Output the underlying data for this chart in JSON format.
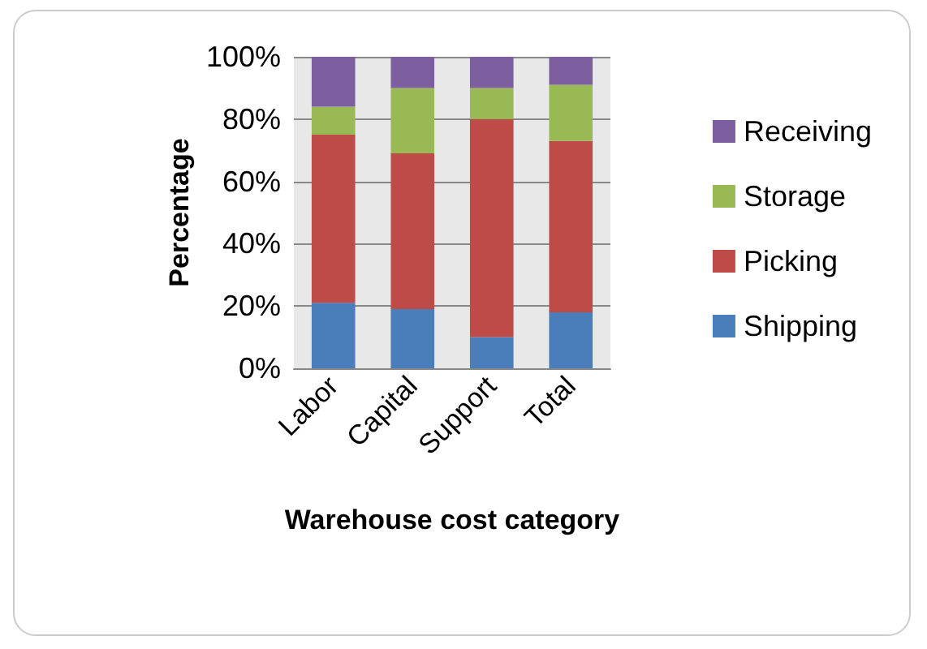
{
  "chart_data": {
    "type": "bar",
    "stacked": true,
    "xlabel": "Warehouse cost category",
    "ylabel": "Percentage",
    "categories": [
      "Labor",
      "Capital",
      "Support",
      "Total"
    ],
    "series": [
      {
        "name": "Shipping",
        "color": "#4a7ebb",
        "values": [
          21,
          19,
          10,
          18
        ]
      },
      {
        "name": "Picking",
        "color": "#be4b48",
        "values": [
          54,
          50,
          70,
          55
        ]
      },
      {
        "name": "Storage",
        "color": "#98b954",
        "values": [
          9,
          21,
          10,
          18
        ]
      },
      {
        "name": "Receiving",
        "color": "#7d5fa0",
        "values": [
          16,
          10,
          10,
          9
        ]
      }
    ],
    "ylim": [
      0,
      100
    ],
    "yticks": [
      {
        "value": 0,
        "label": "0%"
      },
      {
        "value": 20,
        "label": "20%"
      },
      {
        "value": 40,
        "label": "40%"
      },
      {
        "value": 60,
        "label": "60%"
      },
      {
        "value": 80,
        "label": "80%"
      },
      {
        "value": 100,
        "label": "100%"
      }
    ],
    "grid": "y",
    "legend": "right"
  }
}
